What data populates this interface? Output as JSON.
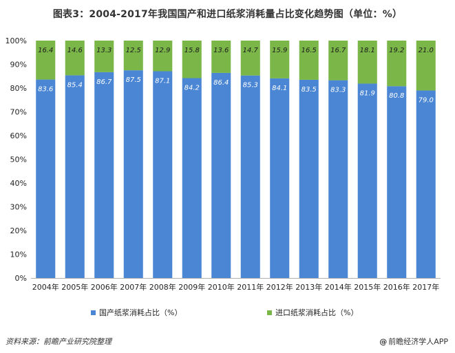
{
  "chart_data": {
    "type": "bar",
    "stacked": true,
    "title": "图表3：2004-2017年我国国产和进口纸浆消耗量占比变化趋势图（单位：%）",
    "categories": [
      "2004年",
      "2005年",
      "2006年",
      "2007年",
      "2008年",
      "2009年",
      "2010年",
      "2011年",
      "2012年",
      "2013年",
      "2014年",
      "2015年",
      "2016年",
      "2017年"
    ],
    "series": [
      {
        "name": "国产纸浆消耗占比（%）",
        "color": "#4a86d4",
        "label_color": "#ffffff",
        "values": [
          83.6,
          85.4,
          86.7,
          87.5,
          87.1,
          84.2,
          86.4,
          85.3,
          84.1,
          83.5,
          83.3,
          81.9,
          80.8,
          79.0
        ],
        "labels": [
          "83.6",
          "85.4",
          "86.7",
          "87.5",
          "87.1",
          "84.2",
          "86.4",
          "85.3",
          "84.1",
          "83.5",
          "83.3",
          "81.9",
          "80.8",
          "79.0"
        ]
      },
      {
        "name": "进口纸浆消耗占比（%）",
        "color": "#7ab648",
        "label_color": "#1a1a1a",
        "values": [
          16.4,
          14.6,
          13.3,
          12.5,
          12.9,
          15.8,
          13.6,
          14.7,
          15.9,
          16.5,
          16.7,
          18.1,
          19.2,
          21.0
        ],
        "labels": [
          "16.4",
          "14.6",
          "13.3",
          "12.5",
          "12.9",
          "15.8",
          "13.6",
          "14.7",
          "15.9",
          "16.5",
          "16.7",
          "18.1",
          "19.2",
          "21.0"
        ]
      }
    ],
    "ylim": [
      0,
      100
    ],
    "yticks": [
      "0%",
      "10%",
      "20%",
      "30%",
      "40%",
      "50%",
      "60%",
      "70%",
      "80%",
      "90%",
      "100%"
    ],
    "legend_position": "bottom-center",
    "grid": false
  },
  "source_text": "资料来源：前瞻产业研究院整理",
  "brand": {
    "symbol": "@",
    "text": "前瞻经济学人APP"
  }
}
